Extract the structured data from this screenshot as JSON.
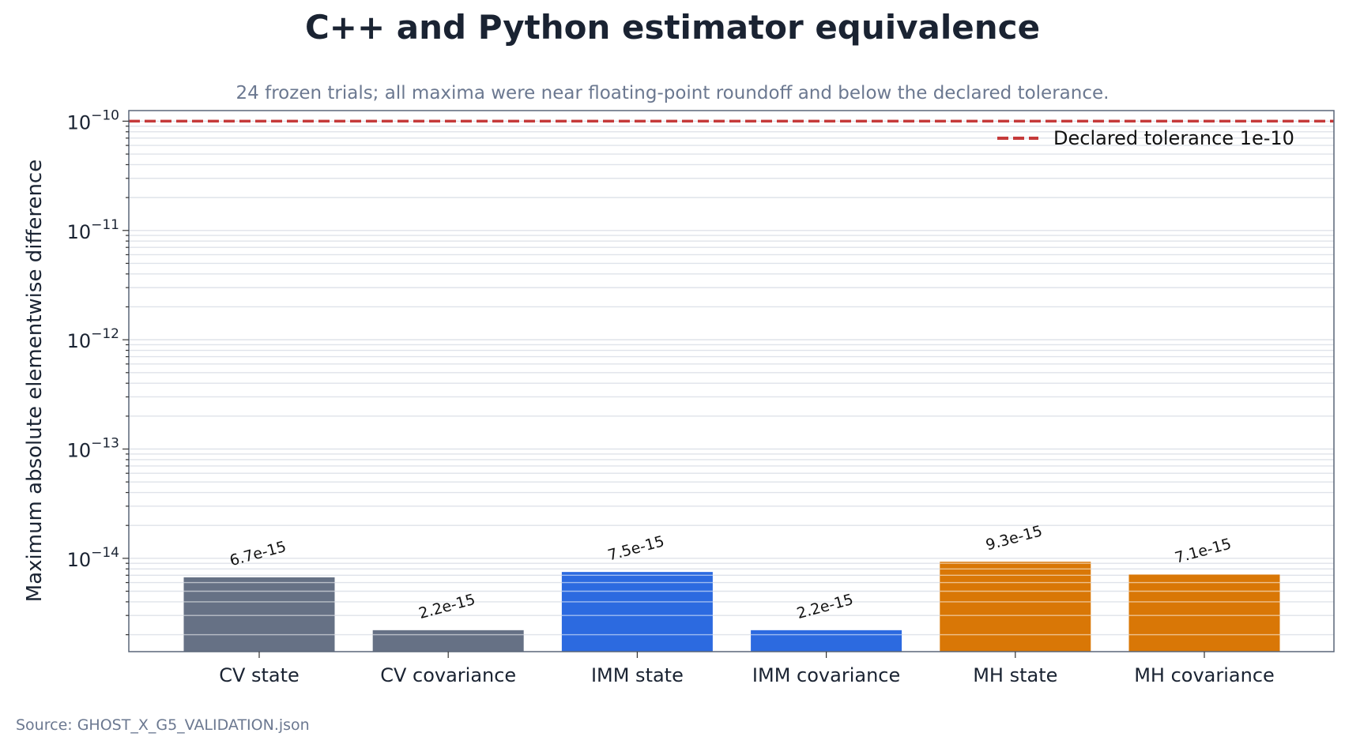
{
  "chart_data": {
    "type": "bar",
    "title": "C++ and Python estimator equivalence",
    "subtitle": "24 frozen trials; all maxima were near floating-point roundoff and below the declared tolerance.",
    "ylabel": "Maximum absolute elementwise difference",
    "xlabel": "",
    "yscale": "log",
    "ylim": [
      1.4e-15,
      1.25e-10
    ],
    "yticks": [
      {
        "value": 1e-14,
        "base": "10",
        "exp": "−14"
      },
      {
        "value": 1e-13,
        "base": "10",
        "exp": "−13"
      },
      {
        "value": 1e-12,
        "base": "10",
        "exp": "−12"
      },
      {
        "value": 1e-11,
        "base": "10",
        "exp": "−11"
      },
      {
        "value": 1e-10,
        "base": "10",
        "exp": "−10"
      }
    ],
    "grid": true,
    "categories": [
      "CV state",
      "CV covariance",
      "IMM state",
      "IMM covariance",
      "MH state",
      "MH covariance"
    ],
    "values": [
      6.7e-15,
      2.2e-15,
      7.5e-15,
      2.2e-15,
      9.3e-15,
      7.1e-15
    ],
    "value_labels": [
      "6.7e-15",
      "2.2e-15",
      "7.5e-15",
      "2.2e-15",
      "9.3e-15",
      "7.1e-15"
    ],
    "colors": [
      "#667185",
      "#667185",
      "#2c6ae0",
      "#2c6ae0",
      "#d97706",
      "#d97706"
    ],
    "reference_line": {
      "value": 1e-10,
      "label": "Declared tolerance 1e-10",
      "color": "#c53a3a",
      "style": "dashed"
    },
    "legend_position": "top-right",
    "source": "Source: GHOST_X_G5_VALIDATION.json"
  }
}
